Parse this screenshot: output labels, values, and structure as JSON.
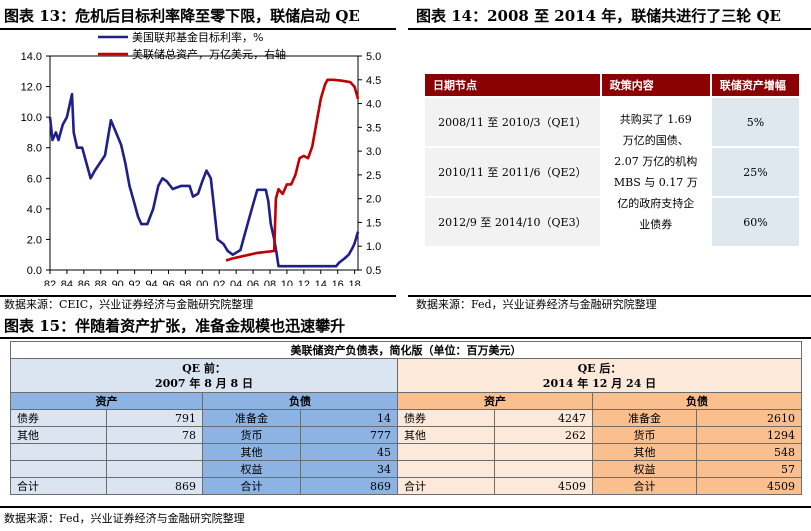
{
  "fig13": {
    "title": "图表 13：危机后目标利率降至零下限，联储启动 QE",
    "source": "数据来源：CEIC，兴业证券经济与金融研究院整理"
  },
  "fig14": {
    "title": "图表 14：2008 至 2014 年，联储共进行了三轮 QE",
    "source": "数据来源：Fed，兴业证券经济与金融研究院整理",
    "headers": [
      "日期节点",
      "政策内容",
      "联储资产增幅"
    ],
    "rows": [
      {
        "period": "2008/11 至 2010/3（QE1）",
        "increase": "5%"
      },
      {
        "period": "2010/11 至 2011/6（QE2）",
        "increase": "25%"
      },
      {
        "period": "2012/9 至 2014/10（QE3）",
        "increase": "60%"
      }
    ],
    "policy": [
      "共购买了 1.69",
      "万亿的国债、",
      "2.07 万亿的机构",
      "MBS 与 0.17 万",
      "亿的政府支持企",
      "业债券"
    ]
  },
  "fig15": {
    "title": "图表 15：伴随着资产扩张，准备金规模也迅速攀升",
    "source": "数据来源：Fed，兴业证券经济与金融研究院整理",
    "table_title": "美联储资产负债表，简化版（单位：百万美元）",
    "before": {
      "label": "QE 前：",
      "date": "2007 年 8 月 8 日"
    },
    "after": {
      "label": "QE 后：",
      "date": "2014 年 12 月 24 日"
    },
    "asset_label": "资产",
    "liab_label": "负债",
    "rows": [
      {
        "a1": "债券",
        "v1": "791",
        "l1": "准备金",
        "w1": "14",
        "a2": "债券",
        "v2": "4247",
        "l2": "准备金",
        "w2": "2610"
      },
      {
        "a1": "其他",
        "v1": "78",
        "l1": "货币",
        "w1": "777",
        "a2": "其他",
        "v2": "262",
        "l2": "货币",
        "w2": "1294"
      },
      {
        "a1": "",
        "v1": "",
        "l1": "其他",
        "w1": "45",
        "a2": "",
        "v2": "",
        "l2": "其他",
        "w2": "548"
      },
      {
        "a1": "",
        "v1": "",
        "l1": "权益",
        "w1": "34",
        "a2": "",
        "v2": "",
        "l2": "权益",
        "w2": "57"
      },
      {
        "a1": "合计",
        "v1": "869",
        "l1": "合计",
        "w1": "869",
        "a2": "合计",
        "v2": "4509",
        "l2": "合计",
        "w2": "4509"
      }
    ]
  },
  "chart_data": {
    "type": "line",
    "title": "",
    "xlabel": "",
    "x_ticks": [
      "82",
      "84",
      "86",
      "88",
      "90",
      "92",
      "94",
      "96",
      "98",
      "00",
      "02",
      "04",
      "06",
      "08",
      "10",
      "12",
      "14",
      "16",
      "18"
    ],
    "xlim": [
      1982,
      2018.4
    ],
    "ylim_left": [
      0,
      14
    ],
    "ylim_right": [
      0.5,
      5
    ],
    "yticks_left": [
      "0.0",
      "2.0",
      "4.0",
      "6.0",
      "8.0",
      "10.0",
      "12.0",
      "14.0"
    ],
    "yticks_right": [
      "0.5",
      "1.0",
      "1.5",
      "2.0",
      "2.5",
      "3.0",
      "3.5",
      "4.0",
      "4.5",
      "5.0"
    ],
    "legend_position": "top-left",
    "colors": {
      "fed_funds": "#1f1f8a",
      "balance_sheet": "#c00000"
    },
    "series": [
      {
        "name": "美国联邦基金目标利率，%",
        "axis": "left",
        "points": [
          [
            1982.0,
            10.0
          ],
          [
            1982.3,
            8.5
          ],
          [
            1982.7,
            9.0
          ],
          [
            1983.0,
            8.5
          ],
          [
            1983.5,
            9.5
          ],
          [
            1984.0,
            10.0
          ],
          [
            1984.6,
            11.5
          ],
          [
            1984.8,
            9.0
          ],
          [
            1985.2,
            8.0
          ],
          [
            1985.8,
            8.0
          ],
          [
            1986.3,
            7.0
          ],
          [
            1986.8,
            6.0
          ],
          [
            1987.3,
            6.5
          ],
          [
            1987.9,
            7.0
          ],
          [
            1988.5,
            7.5
          ],
          [
            1989.2,
            9.8
          ],
          [
            1989.8,
            9.0
          ],
          [
            1990.4,
            8.2
          ],
          [
            1990.9,
            7.0
          ],
          [
            1991.4,
            5.5
          ],
          [
            1991.9,
            4.5
          ],
          [
            1992.4,
            3.5
          ],
          [
            1992.8,
            3.0
          ],
          [
            1993.5,
            3.0
          ],
          [
            1994.2,
            4.0
          ],
          [
            1994.8,
            5.5
          ],
          [
            1995.3,
            6.0
          ],
          [
            1995.8,
            5.8
          ],
          [
            1996.5,
            5.3
          ],
          [
            1997.5,
            5.5
          ],
          [
            1998.5,
            5.5
          ],
          [
            1998.9,
            4.8
          ],
          [
            1999.5,
            5.0
          ],
          [
            2000.0,
            5.8
          ],
          [
            2000.5,
            6.5
          ],
          [
            2001.0,
            6.0
          ],
          [
            2001.4,
            4.0
          ],
          [
            2001.8,
            2.0
          ],
          [
            2002.5,
            1.7
          ],
          [
            2003.0,
            1.25
          ],
          [
            2003.6,
            1.0
          ],
          [
            2004.5,
            1.3
          ],
          [
            2005.0,
            2.3
          ],
          [
            2005.5,
            3.3
          ],
          [
            2006.0,
            4.3
          ],
          [
            2006.5,
            5.25
          ],
          [
            2007.5,
            5.25
          ],
          [
            2007.8,
            4.5
          ],
          [
            2008.1,
            3.0
          ],
          [
            2008.5,
            2.0
          ],
          [
            2008.8,
            1.0
          ],
          [
            2009.0,
            0.25
          ],
          [
            2015.8,
            0.25
          ],
          [
            2016.2,
            0.5
          ],
          [
            2016.8,
            0.75
          ],
          [
            2017.3,
            1.0
          ],
          [
            2017.8,
            1.5
          ],
          [
            2018.0,
            1.75
          ],
          [
            2018.4,
            2.5
          ]
        ]
      },
      {
        "name": "美联储总资产，万亿美元，右轴",
        "axis": "right",
        "points": [
          [
            2002.8,
            0.7
          ],
          [
            2003.5,
            0.74
          ],
          [
            2004.5,
            0.78
          ],
          [
            2005.5,
            0.82
          ],
          [
            2006.5,
            0.86
          ],
          [
            2007.5,
            0.88
          ],
          [
            2008.5,
            0.9
          ],
          [
            2008.7,
            2.0
          ],
          [
            2009.0,
            2.2
          ],
          [
            2009.5,
            2.1
          ],
          [
            2010.0,
            2.3
          ],
          [
            2010.5,
            2.3
          ],
          [
            2011.0,
            2.5
          ],
          [
            2011.5,
            2.85
          ],
          [
            2012.0,
            2.9
          ],
          [
            2012.5,
            2.85
          ],
          [
            2013.0,
            3.1
          ],
          [
            2013.5,
            3.6
          ],
          [
            2014.0,
            4.1
          ],
          [
            2014.5,
            4.4
          ],
          [
            2014.8,
            4.5
          ],
          [
            2015.5,
            4.5
          ],
          [
            2016.5,
            4.48
          ],
          [
            2017.5,
            4.45
          ],
          [
            2018.0,
            4.35
          ],
          [
            2018.4,
            4.1
          ]
        ]
      }
    ]
  }
}
